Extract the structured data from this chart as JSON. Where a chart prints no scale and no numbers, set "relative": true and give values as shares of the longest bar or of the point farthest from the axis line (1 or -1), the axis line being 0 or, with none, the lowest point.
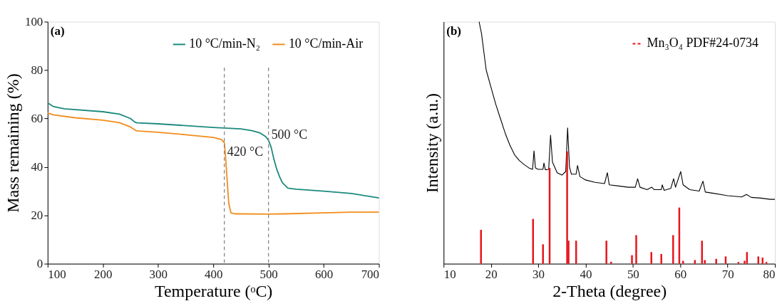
{
  "chart_data": [
    {
      "type": "line",
      "xlabel": "Temperature (ᵒC)",
      "ylabel": "Mass remaining (%)",
      "xlim": [
        100,
        700
      ],
      "xticks": [
        100,
        200,
        300,
        400,
        500,
        600,
        700
      ],
      "ylim": [
        0,
        100
      ],
      "yticks": [
        0,
        20,
        40,
        60,
        80,
        100
      ],
      "grid": false,
      "legend": "top right",
      "annotations": [
        "(a)",
        {
          "text": "420 °C",
          "x": 420,
          "y": 46
        },
        {
          "text": "500 °C",
          "x": 500,
          "y": 53
        }
      ],
      "ref_lines": [
        {
          "axis": "x",
          "value": 420,
          "color": "#888888",
          "line_style": "dashed"
        },
        {
          "axis": "x",
          "value": 500,
          "color": "#888888",
          "line_style": "dashed"
        }
      ],
      "series": [
        {
          "name": "10 °C/min-N₂",
          "color": "#1b8a7e",
          "x": [
            100,
            110,
            130,
            200,
            230,
            250,
            258,
            262,
            300,
            400,
            450,
            470,
            485,
            495,
            500,
            505,
            510,
            515,
            520,
            525,
            535,
            550,
            600,
            650,
            700
          ],
          "values": [
            66.5,
            65,
            64,
            62.8,
            61.8,
            60,
            58.5,
            58.2,
            57.8,
            56.3,
            55.7,
            55,
            54,
            52.5,
            51,
            48,
            43,
            39,
            36,
            33.5,
            31.2,
            30.8,
            30,
            29,
            27.2
          ]
        },
        {
          "name": "10 °C/min-Air",
          "color": "#f28c1c",
          "x": [
            100,
            110,
            150,
            200,
            230,
            250,
            260,
            265,
            300,
            350,
            400,
            415,
            420,
            422,
            425,
            428,
            432,
            440,
            500,
            530,
            600,
            650,
            700
          ],
          "values": [
            62.3,
            61.5,
            60.3,
            59.3,
            58.3,
            56.5,
            55,
            54.8,
            54.3,
            53.3,
            52.2,
            51.3,
            50,
            45,
            35,
            25,
            21,
            20.6,
            20.5,
            20.6,
            21.0,
            21.3,
            21.3
          ]
        }
      ]
    },
    {
      "type": "line",
      "relative": true,
      "xlabel": "2-Theta (degree)",
      "ylabel": "Intensity (a.u.)",
      "xlim": [
        10,
        80
      ],
      "xticks": [
        10,
        20,
        30,
        40,
        50,
        60,
        70,
        80
      ],
      "tick_labels": "x",
      "grid": false,
      "legend": "top right",
      "annotations": [
        "(b)"
      ],
      "series": [
        {
          "color": "#000000",
          "x": [
            17.5,
            18,
            19,
            20,
            21,
            22,
            23,
            24,
            25,
            26,
            27,
            28,
            28.8,
            29.1,
            29.4,
            30,
            31,
            31.2,
            31.5,
            32.2,
            32.6,
            33,
            34,
            35,
            35.8,
            36.2,
            36.6,
            37,
            38,
            38.3,
            38.8,
            40,
            42,
            44,
            44.6,
            45,
            47,
            49,
            50.5,
            51,
            51.5,
            53,
            54,
            54.5,
            56,
            56.2,
            56.6,
            58,
            58.6,
            59,
            60.1,
            60.6,
            62,
            64,
            64.8,
            65.3,
            67,
            70,
            73,
            74,
            75,
            77,
            79,
            80
          ],
          "values": [
            1.0,
            0.952,
            0.8,
            0.73,
            0.66,
            0.6,
            0.54,
            0.49,
            0.45,
            0.426,
            0.41,
            0.396,
            0.39,
            0.466,
            0.396,
            0.39,
            0.39,
            0.416,
            0.388,
            0.39,
            0.531,
            0.42,
            0.376,
            0.366,
            0.381,
            0.561,
            0.4,
            0.37,
            0.37,
            0.406,
            0.36,
            0.346,
            0.336,
            0.331,
            0.376,
            0.326,
            0.321,
            0.316,
            0.316,
            0.351,
            0.316,
            0.306,
            0.316,
            0.306,
            0.306,
            0.326,
            0.303,
            0.311,
            0.351,
            0.316,
            0.381,
            0.326,
            0.306,
            0.3,
            0.341,
            0.296,
            0.291,
            0.281,
            0.276,
            0.286,
            0.274,
            0.271,
            0.266,
            0.266
          ]
        },
        {
          "name": "Mn₃O₄ PDF#24-0734",
          "type": "bar",
          "color": "#e8141c",
          "x": [
            17.9,
            28.9,
            31.0,
            32.4,
            36.1,
            36.4,
            38.0,
            44.4,
            45.4,
            49.8,
            50.7,
            53.9,
            56.0,
            58.5,
            59.8,
            60.6,
            63.1,
            64.6,
            65.2,
            67.6,
            69.6,
            72.3,
            73.6,
            74.1,
            76.5,
            77.4,
            78.2
          ],
          "values": [
            0.14,
            0.185,
            0.08,
            0.396,
            0.464,
            0.095,
            0.095,
            0.095,
            0.008,
            0.035,
            0.118,
            0.048,
            0.04,
            0.118,
            0.232,
            0.012,
            0.015,
            0.095,
            0.015,
            0.02,
            0.03,
            0.007,
            0.012,
            0.048,
            0.03,
            0.025,
            0.007
          ]
        }
      ]
    }
  ]
}
